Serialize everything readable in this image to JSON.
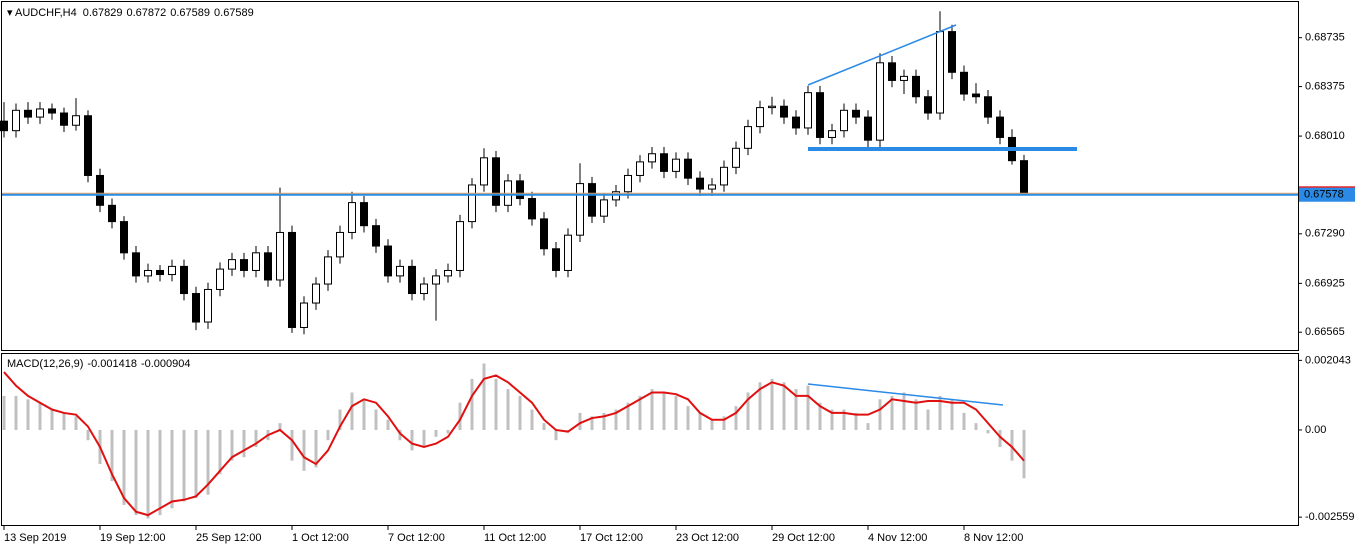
{
  "chart_data": {
    "type": "candlestick",
    "symbol": "AUDCHF,H4",
    "ylim": [
      0.66434,
      0.68998
    ],
    "yticks": [
      0.68735,
      0.68375,
      {
        "value": 0.6801,
        "label": "0.68010"
      },
      {
        "value": 0.6729,
        "label": "0.67290"
      },
      0.66925,
      0.66565
    ],
    "xlim": [
      0,
      85
    ],
    "xticks": [
      {
        "value": 0,
        "label": "13 Sep 2019"
      },
      {
        "value": 8,
        "label": "19 Sep 12:00"
      },
      {
        "value": 16,
        "label": "25 Sep 12:00"
      },
      {
        "value": 24,
        "label": "1 Oct 12:00"
      },
      {
        "value": 32,
        "label": "7 Oct 12:00"
      },
      {
        "value": 40,
        "label": "11 Oct 12:00"
      },
      {
        "value": 48,
        "label": "17 Oct 12:00"
      },
      {
        "value": 56,
        "label": "23 Oct 12:00"
      },
      {
        "value": 64,
        "label": "29 Oct 12:00"
      },
      {
        "value": 72,
        "label": "4 Nov 12:00"
      },
      {
        "value": 80,
        "label": "8 Nov 12:00"
      }
    ],
    "up_color": "#ffffff",
    "down_color": "#000000",
    "current_price_color": "#e8a15c",
    "current_price_box": "#e8282b",
    "level": {
      "value": 0.67578,
      "color": "#2a8ae6"
    },
    "candles": [
      [
        0.6812,
        0.6826,
        0.68,
        0.6805
      ],
      [
        0.6805,
        0.6825,
        0.68,
        0.682
      ],
      [
        0.682,
        0.6826,
        0.681,
        0.6815
      ],
      [
        0.6815,
        0.6826,
        0.681,
        0.6821
      ],
      [
        0.6821,
        0.6825,
        0.6813,
        0.6818
      ],
      [
        0.6818,
        0.6822,
        0.6804,
        0.6809
      ],
      [
        0.6809,
        0.6829,
        0.6805,
        0.6816
      ],
      [
        0.6816,
        0.682,
        0.6767,
        0.6772
      ],
      [
        0.6772,
        0.6777,
        0.6745,
        0.675
      ],
      [
        0.675,
        0.6755,
        0.6733,
        0.6738
      ],
      [
        0.6738,
        0.6742,
        0.671,
        0.6715
      ],
      [
        0.6715,
        0.672,
        0.6693,
        0.6698
      ],
      [
        0.6698,
        0.6707,
        0.6693,
        0.6702
      ],
      [
        0.6702,
        0.6706,
        0.6694,
        0.6699
      ],
      [
        0.6699,
        0.671,
        0.6694,
        0.6705
      ],
      [
        0.6705,
        0.671,
        0.668,
        0.6685
      ],
      [
        0.6685,
        0.669,
        0.6658,
        0.6664
      ],
      [
        0.6664,
        0.6693,
        0.6659,
        0.6688
      ],
      [
        0.6688,
        0.6708,
        0.6683,
        0.6703
      ],
      [
        0.6703,
        0.6715,
        0.6698,
        0.671
      ],
      [
        0.671,
        0.6715,
        0.6697,
        0.6702
      ],
      [
        0.6702,
        0.672,
        0.6697,
        0.6715
      ],
      [
        0.6715,
        0.672,
        0.669,
        0.6695
      ],
      [
        0.6695,
        0.6763,
        0.669,
        0.673
      ],
      [
        0.673,
        0.6735,
        0.6656,
        0.666
      ],
      [
        0.666,
        0.6683,
        0.6655,
        0.6678
      ],
      [
        0.6678,
        0.6697,
        0.6673,
        0.6692
      ],
      [
        0.6692,
        0.6717,
        0.6687,
        0.6712
      ],
      [
        0.6712,
        0.6735,
        0.6707,
        0.673
      ],
      [
        0.673,
        0.676,
        0.6725,
        0.6752
      ],
      [
        0.6752,
        0.6757,
        0.673,
        0.6735
      ],
      [
        0.6735,
        0.674,
        0.6715,
        0.672
      ],
      [
        0.672,
        0.6725,
        0.6693,
        0.6698
      ],
      [
        0.6698,
        0.671,
        0.6693,
        0.6705
      ],
      [
        0.6705,
        0.671,
        0.668,
        0.6685
      ],
      [
        0.6685,
        0.6697,
        0.668,
        0.6692
      ],
      [
        0.6692,
        0.6703,
        0.6665,
        0.6698
      ],
      [
        0.6698,
        0.6707,
        0.6693,
        0.6702
      ],
      [
        0.6702,
        0.6743,
        0.6697,
        0.6738
      ],
      [
        0.6738,
        0.677,
        0.6733,
        0.6765
      ],
      [
        0.6765,
        0.6792,
        0.676,
        0.6785
      ],
      [
        0.6785,
        0.679,
        0.6745,
        0.675
      ],
      [
        0.675,
        0.6773,
        0.6745,
        0.6768
      ],
      [
        0.6768,
        0.6773,
        0.675,
        0.6755
      ],
      [
        0.6755,
        0.676,
        0.6735,
        0.674
      ],
      [
        0.674,
        0.6745,
        0.6713,
        0.6718
      ],
      [
        0.6718,
        0.6723,
        0.6697,
        0.6702
      ],
      [
        0.6702,
        0.6733,
        0.6697,
        0.6728
      ],
      [
        0.6728,
        0.6781,
        0.6723,
        0.6766
      ],
      [
        0.6766,
        0.6771,
        0.6737,
        0.6742
      ],
      [
        0.6742,
        0.6759,
        0.6737,
        0.6754
      ],
      [
        0.6754,
        0.6765,
        0.6749,
        0.676
      ],
      [
        0.676,
        0.6777,
        0.6755,
        0.6772
      ],
      [
        0.6772,
        0.6787,
        0.6767,
        0.6782
      ],
      [
        0.6782,
        0.6793,
        0.6777,
        0.6788
      ],
      [
        0.6788,
        0.6793,
        0.677,
        0.6775
      ],
      [
        0.6775,
        0.6789,
        0.677,
        0.6784
      ],
      [
        0.6784,
        0.6789,
        0.6765,
        0.677
      ],
      [
        0.677,
        0.6775,
        0.6757,
        0.6762
      ],
      [
        0.6762,
        0.677,
        0.6757,
        0.6765
      ],
      [
        0.6765,
        0.6783,
        0.676,
        0.6778
      ],
      [
        0.6778,
        0.6797,
        0.6773,
        0.6792
      ],
      [
        0.6792,
        0.6813,
        0.6787,
        0.6808
      ],
      [
        0.6808,
        0.6827,
        0.6803,
        0.6822
      ],
      [
        0.6822,
        0.683,
        0.6817,
        0.6823
      ],
      [
        0.6823,
        0.6828,
        0.681,
        0.6815
      ],
      [
        0.6815,
        0.682,
        0.6802,
        0.6807
      ],
      [
        0.6807,
        0.6838,
        0.6802,
        0.6833
      ],
      [
        0.6833,
        0.6838,
        0.6795,
        0.68
      ],
      [
        0.68,
        0.681,
        0.6795,
        0.6805
      ],
      [
        0.6805,
        0.6825,
        0.68,
        0.682
      ],
      [
        0.682,
        0.6825,
        0.681,
        0.6815
      ],
      [
        0.6815,
        0.682,
        0.6793,
        0.6798
      ],
      [
        0.6798,
        0.6862,
        0.6793,
        0.6855
      ],
      [
        0.6855,
        0.686,
        0.6837,
        0.6842
      ],
      [
        0.6842,
        0.685,
        0.6832,
        0.6845
      ],
      [
        0.6845,
        0.685,
        0.6825,
        0.683
      ],
      [
        0.683,
        0.6835,
        0.6813,
        0.6818
      ],
      [
        0.6818,
        0.6893,
        0.6813,
        0.6878
      ],
      [
        0.6878,
        0.6883,
        0.6843,
        0.6848
      ],
      [
        0.6848,
        0.6853,
        0.6827,
        0.6832
      ],
      [
        0.6832,
        0.684,
        0.6825,
        0.683
      ],
      [
        0.683,
        0.6835,
        0.681,
        0.6815
      ],
      [
        0.6815,
        0.682,
        0.6795,
        0.68
      ],
      [
        0.68,
        0.6806,
        0.678,
        0.67829
      ],
      [
        0.67829,
        0.67872,
        0.67589,
        0.67589
      ]
    ],
    "macd": {
      "name": "MACD(12,26,9)",
      "ylim": [
        -0.00279,
        0.00223
      ],
      "yticks": [
        0.002043,
        {
          "value": 0,
          "label": "0.00"
        },
        -0.002559
      ],
      "hist_color": "#c0c0c0",
      "signal_color": "#e01010",
      "histogram": [
        0.001,
        0.001,
        0.0009,
        0.0008,
        0.0006,
        0.0005,
        0.0004,
        -0.0003,
        -0.001,
        -0.0015,
        -0.0022,
        -0.0025,
        -0.0026,
        -0.0025,
        -0.0023,
        -0.0021,
        -0.002,
        -0.0019,
        -0.0013,
        -0.0009,
        -0.0008,
        -0.0005,
        -0.0003,
        0.0002,
        -0.0009,
        -0.0012,
        -0.0011,
        -0.0003,
        0.0006,
        0.0011,
        0.0009,
        0.0006,
        0.0003,
        -0.0003,
        -0.0006,
        -0.0005,
        -0.0002,
        -0.0001,
        0.0008,
        0.0015,
        0.00195,
        0.0015,
        0.0012,
        0.001,
        0.0006,
        0.0002,
        -0.0003,
        0,
        0.0005,
        0.0004,
        0.0005,
        0.0006,
        0.0008,
        0.001,
        0.0012,
        0.0011,
        0.001,
        0.0007,
        0.0005,
        0.0003,
        0.0004,
        0.0007,
        0.0011,
        0.0014,
        0.0015,
        0.0014,
        0.0012,
        0.0013,
        0.0008,
        0.0006,
        0.0006,
        0.0005,
        0.0002,
        0.0009,
        0.001,
        0.0011,
        0.0009,
        0.0006,
        0.001,
        0.0009,
        0.0005,
        0.0002,
        -0.0001,
        -0.0005,
        -0.0009,
        -0.001418
      ],
      "signal": [
        0.0017,
        0.0013,
        0.001,
        0.0008,
        0.0006,
        0.0005,
        0.00045,
        0.0001,
        -0.0005,
        -0.0013,
        -0.002,
        -0.0024,
        -0.0025,
        -0.0023,
        -0.0021,
        -0.00205,
        -0.00195,
        -0.0016,
        -0.0012,
        -0.0008,
        -0.0006,
        -0.0004,
        -0.00015,
        0,
        -0.0003,
        -0.0008,
        -0.001,
        -0.0006,
        0.0001,
        0.0007,
        0.0009,
        0.0008,
        0.0004,
        -0.0001,
        -0.0004,
        -0.0005,
        -0.0004,
        -0.0002,
        0.0003,
        0.001,
        0.0015,
        0.0016,
        0.0014,
        0.0011,
        0.0008,
        0.0003,
        0,
        -5e-05,
        0.0002,
        0.00035,
        0.0004,
        0.0005,
        0.0007,
        0.0009,
        0.0011,
        0.0011,
        0.00105,
        0.0009,
        0.0005,
        0.0003,
        0.0003,
        0.0005,
        0.0009,
        0.0012,
        0.0014,
        0.0013,
        0.001,
        0.001,
        0.0007,
        0.0005,
        0.0005,
        0.00045,
        0.00045,
        0.0006,
        0.0009,
        0.00085,
        0.0008,
        0.00085,
        0.00085,
        0.0008,
        0.0008,
        0.0006,
        0.0002,
        -0.0002,
        -0.0005,
        -0.000904
      ]
    }
  }
}
